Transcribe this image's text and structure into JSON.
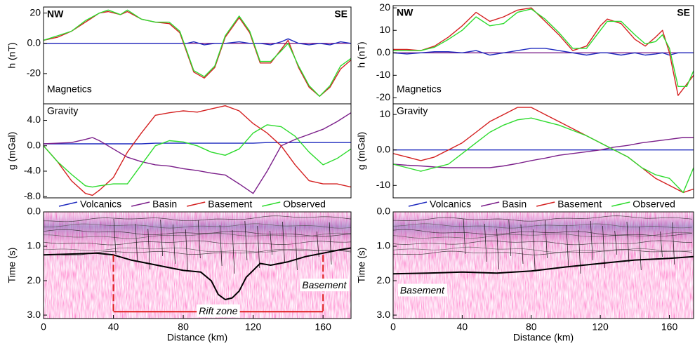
{
  "chart_data": [
    {
      "type": "line",
      "left_label": "NW",
      "right_label": "SE",
      "panel_label": "Magnetics",
      "panel_label_corner": "lower left",
      "ylabel": "h (nT)",
      "xlim": [
        0,
        176
      ],
      "ylim": [
        -40,
        24
      ],
      "yticks": [
        20,
        {
          "value": 0,
          "label": "0.0"
        },
        -20
      ],
      "x": [
        0,
        8,
        16,
        24,
        32,
        37,
        44,
        48,
        56,
        64,
        72,
        78,
        82,
        86,
        92,
        98,
        104,
        112,
        118,
        124,
        130,
        136,
        140,
        146,
        152,
        158,
        164,
        170,
        176
      ],
      "series": [
        {
          "color": "#7b1f8a",
          "values": [
            0,
            0,
            0,
            0,
            0,
            0,
            0,
            0,
            0,
            0,
            0,
            0,
            0,
            0,
            0,
            0,
            0,
            0,
            0,
            0,
            0,
            0,
            0,
            0,
            0,
            0,
            0,
            0,
            0
          ]
        },
        {
          "color": "#1f2bbf",
          "values": [
            0,
            0,
            0,
            0,
            0,
            0,
            0,
            0,
            0,
            0,
            0,
            0,
            0,
            1,
            -1,
            0,
            0,
            1,
            0,
            0,
            -1,
            1,
            3,
            0,
            -1,
            0,
            -1,
            1,
            0
          ]
        },
        {
          "color": "#d42020",
          "values": [
            2,
            4,
            8,
            14,
            20,
            21,
            19,
            21,
            16,
            14,
            13,
            7,
            -6,
            -19,
            -23,
            -16,
            4,
            17,
            7,
            -13,
            -13,
            -4,
            2,
            -16,
            -29,
            -35,
            -29,
            -17,
            -11
          ]
        },
        {
          "color": "#2ddb2d",
          "values": [
            2,
            5,
            8,
            15,
            20,
            22,
            19,
            22,
            16,
            14,
            14,
            8,
            -5,
            -18,
            -22,
            -15,
            5,
            18,
            8,
            -12,
            -12,
            -5,
            0,
            -15,
            -28,
            -35,
            -28,
            -15,
            -10
          ]
        }
      ]
    },
    {
      "type": "line",
      "panel_label": "Gravity",
      "panel_label_corner": "upper left",
      "ylabel": "g (mGal)",
      "legend": "below",
      "xlim": [
        0,
        176
      ],
      "ylim": [
        -8.2,
        6.6
      ],
      "yticks": [
        {
          "value": 4,
          "label": "4.0"
        },
        {
          "value": 0,
          "label": "0.0"
        },
        {
          "value": -4,
          "label": "-4.0"
        },
        {
          "value": -8,
          "label": "-8.0"
        }
      ],
      "x": [
        0,
        8,
        16,
        24,
        28,
        32,
        40,
        48,
        56,
        64,
        72,
        80,
        88,
        96,
        104,
        112,
        120,
        128,
        136,
        144,
        152,
        160,
        168,
        176
      ],
      "series": [
        {
          "name": "Volcanics",
          "color": "#1f2bbf",
          "values": [
            0.3,
            0.3,
            0.3,
            0.3,
            0.3,
            0.3,
            0.3,
            0.3,
            0.3,
            0.4,
            0.4,
            0.4,
            0.4,
            0.4,
            0.4,
            0.4,
            0.4,
            0.5,
            0.5,
            0.5,
            0.5,
            0.5,
            0.5,
            0.5
          ]
        },
        {
          "name": "Basin",
          "color": "#7b1f8a",
          "values": [
            0.3,
            0.4,
            0.5,
            1,
            1.3,
            0.8,
            -0.5,
            -1.8,
            -2.5,
            -3,
            -3.2,
            -3.6,
            -3.9,
            -4.3,
            -4.6,
            -6,
            -7.5,
            -4,
            0,
            1,
            1.8,
            2.6,
            3.8,
            5.2
          ]
        },
        {
          "name": "Basement",
          "color": "#d42020",
          "values": [
            0,
            -2.5,
            -5.5,
            -7.5,
            -7.8,
            -7,
            -5,
            -1,
            2,
            4.8,
            5.2,
            5.5,
            5.3,
            5.8,
            6.3,
            5.5,
            3.5,
            2,
            0,
            -3,
            -5.5,
            -6,
            -6,
            -6.5
          ]
        },
        {
          "name": "Observed",
          "color": "#2ddb2d",
          "values": [
            0,
            -2.5,
            -4.5,
            -6.3,
            -6.5,
            -6.3,
            -6,
            -6,
            -3,
            0,
            0.8,
            0.6,
            0,
            -1,
            -1.5,
            -0.5,
            2,
            3.3,
            3,
            1.5,
            -1,
            -3,
            -2,
            -0.5
          ]
        }
      ]
    },
    {
      "type": "seismic",
      "ylabel": "Time (s)",
      "xlabel": "Distance (km)",
      "yreversed": true,
      "xlim": [
        0,
        176
      ],
      "ylim": [
        0,
        3.1
      ],
      "xticks": [
        0,
        40,
        80,
        120,
        160
      ],
      "yticks": [
        {
          "value": 0,
          "label": "0.0"
        },
        {
          "value": 1,
          "label": "1.0"
        },
        {
          "value": 2,
          "label": "2.0"
        },
        {
          "value": 3,
          "label": "3.0"
        }
      ],
      "horizon": {
        "color": "#000000",
        "x": [
          0,
          20,
          30,
          40,
          50,
          60,
          70,
          80,
          90,
          96,
          100,
          104,
          108,
          112,
          116,
          120,
          124,
          130,
          140,
          150,
          160,
          170,
          176
        ],
        "values": [
          1.25,
          1.22,
          1.2,
          1.25,
          1.4,
          1.5,
          1.6,
          1.7,
          1.75,
          2.0,
          2.4,
          2.55,
          2.5,
          2.3,
          1.9,
          1.7,
          1.5,
          1.55,
          1.45,
          1.3,
          1.2,
          1.1,
          1.05
        ]
      },
      "annotation": {
        "text": "Basement",
        "x": 148,
        "y": 2.15
      },
      "rift_zone": {
        "label": "Rift zone",
        "x": [
          40,
          160
        ],
        "t": [
          1.25,
          2.9
        ]
      }
    },
    {
      "type": "line",
      "left_label": "NW",
      "right_label": "SE",
      "panel_label": "Magnetics",
      "panel_label_corner": "lower left",
      "ylabel": "h (nT)",
      "xlim": [
        0,
        174
      ],
      "ylim": [
        -22.7,
        21
      ],
      "yticks": [
        20,
        10,
        {
          "value": 0,
          "label": "0.0"
        },
        -10,
        -20
      ],
      "x": [
        0,
        8,
        16,
        24,
        32,
        40,
        48,
        56,
        64,
        72,
        80,
        88,
        96,
        104,
        112,
        120,
        124,
        132,
        140,
        146,
        152,
        156,
        160,
        165,
        170,
        174
      ],
      "series": [
        {
          "color": "#7b1f8a",
          "values": [
            0,
            0,
            0,
            0,
            0,
            0,
            0,
            0,
            0,
            0,
            0,
            0,
            0,
            0,
            0,
            0,
            0,
            0,
            0,
            0,
            0,
            0,
            0,
            0,
            0,
            0
          ]
        },
        {
          "color": "#1f2bbf",
          "values": [
            0,
            -0.5,
            0,
            0.5,
            0.5,
            0,
            1,
            -1,
            0,
            1,
            2,
            2,
            1,
            0,
            -1,
            0,
            0,
            -1,
            0,
            -1,
            -0.5,
            0,
            -1,
            0,
            0,
            0
          ]
        },
        {
          "color": "#d42020",
          "values": [
            1.5,
            1.5,
            1,
            3,
            7,
            12,
            18,
            14,
            16,
            19,
            20,
            14,
            8,
            1,
            3,
            12,
            15,
            13,
            6,
            3,
            7,
            10,
            0,
            -19,
            -14,
            -10
          ]
        },
        {
          "color": "#2ddb2d",
          "values": [
            1,
            1,
            1,
            2.5,
            6,
            10,
            16,
            12,
            13,
            18,
            19.5,
            15,
            9,
            2,
            2,
            10,
            14,
            14,
            8,
            4,
            5,
            8,
            2,
            -15,
            -15,
            -8
          ]
        }
      ]
    },
    {
      "type": "line",
      "panel_label": "Gravity",
      "panel_label_corner": "upper left",
      "ylabel": "g (mGal)",
      "legend": "below",
      "xlim": [
        0,
        174
      ],
      "ylim": [
        -13.5,
        13
      ],
      "yticks": [
        10,
        {
          "value": 0,
          "label": "0.0"
        },
        -10
      ],
      "x": [
        0,
        8,
        16,
        24,
        32,
        40,
        48,
        56,
        64,
        72,
        80,
        88,
        96,
        104,
        112,
        120,
        128,
        136,
        144,
        152,
        160,
        168,
        174
      ],
      "series": [
        {
          "name": "Volcanics",
          "color": "#1f2bbf",
          "values": [
            0,
            0,
            0,
            0,
            0,
            0,
            0,
            0,
            0,
            0,
            0,
            0,
            0,
            0,
            0,
            0,
            0,
            0,
            0,
            0,
            0,
            0,
            0
          ]
        },
        {
          "name": "Basin",
          "color": "#7b1f8a",
          "values": [
            -4,
            -4.3,
            -4.5,
            -4.8,
            -5,
            -5,
            -5,
            -5,
            -4.5,
            -3.8,
            -3,
            -2.3,
            -1.5,
            -1,
            -0.5,
            0,
            0.8,
            1.3,
            2,
            2.5,
            3,
            3.5,
            3.5
          ]
        },
        {
          "name": "Basement",
          "color": "#d42020",
          "values": [
            -1,
            -2,
            -3,
            -2,
            0,
            2,
            5,
            8,
            10,
            12,
            12,
            10,
            8,
            6,
            4,
            2,
            0,
            -2,
            -5,
            -8,
            -10,
            -12,
            -11
          ]
        },
        {
          "name": "Observed",
          "color": "#2ddb2d",
          "values": [
            -4,
            -5,
            -6,
            -5,
            -4,
            -1,
            2,
            5,
            7,
            8.5,
            9,
            8,
            7,
            5.5,
            4,
            2,
            0,
            -2,
            -5,
            -7,
            -8,
            -12,
            -5
          ]
        }
      ]
    },
    {
      "type": "seismic",
      "ylabel": "Time (s)",
      "xlabel": "Distance (km)",
      "yreversed": true,
      "xlim": [
        0,
        174
      ],
      "ylim": [
        0,
        3.1
      ],
      "xticks": [
        0,
        40,
        80,
        120,
        160
      ],
      "yticks": [
        {
          "value": 0,
          "label": "0.0"
        },
        {
          "value": 1,
          "label": "1.0"
        },
        {
          "value": 2,
          "label": "2.0"
        },
        {
          "value": 3,
          "label": "3.0"
        }
      ],
      "horizon": {
        "color": "#000000",
        "x": [
          0,
          20,
          40,
          60,
          80,
          100,
          120,
          140,
          160,
          174
        ],
        "values": [
          1.8,
          1.78,
          1.75,
          1.78,
          1.72,
          1.6,
          1.5,
          1.4,
          1.35,
          1.3
        ]
      },
      "annotation": {
        "text": "Basement",
        "x": 4,
        "y": 2.3
      }
    }
  ]
}
